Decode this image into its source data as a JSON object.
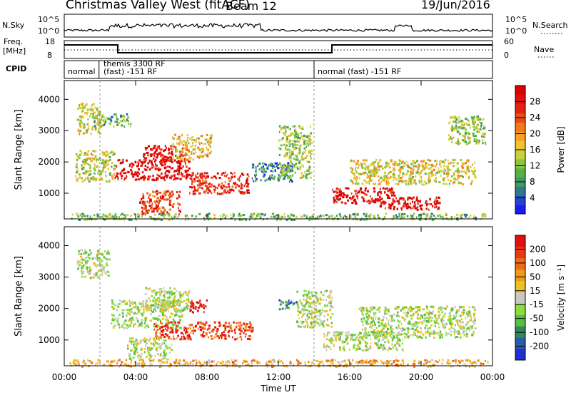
{
  "header": {
    "title": "Christmas Valley West (fitACF)",
    "beam": "Beam 12",
    "date": "19/Jun/2016"
  },
  "status_panel": {
    "nsky_label": "N.Sky",
    "nsky_ticks": [
      "10^5",
      "10^0"
    ],
    "nsearch_label": "N.Search",
    "freq_label_lines": [
      "Freq.",
      "[MHz]"
    ],
    "freq_ticks": [
      "18",
      "8"
    ],
    "nave_ticks": [
      "60",
      "0"
    ],
    "nave_label": "Nave",
    "cpid_label": "CPID",
    "cpid_segments": [
      {
        "start_hour": 0.0,
        "end_hour": 1.95,
        "label": "normal"
      },
      {
        "start_hour": 1.95,
        "end_hour": 14.0,
        "label": "themis 3300 RF",
        "label2": "(fast) -151 RF"
      },
      {
        "start_hour": 14.0,
        "end_hour": 24.0,
        "label": "normal (fast) -151 RF"
      }
    ]
  },
  "chart_data": [
    {
      "type": "heatmap",
      "name": "power",
      "ylabel": "Slant Range [km]",
      "xlim_hours": [
        0,
        24
      ],
      "ylim_km": [
        180,
        4600
      ],
      "yticks": [
        1000,
        2000,
        3000,
        4000
      ],
      "colorbar": {
        "label": "Power [dB]",
        "ticks": [
          4,
          8,
          12,
          16,
          20,
          24,
          28
        ],
        "range": [
          0,
          32
        ],
        "colors": [
          "#1a1aff",
          "#2445c9",
          "#2d7a8a",
          "#3f9b62",
          "#57b043",
          "#8cc63f",
          "#c9d23a",
          "#f0c22c",
          "#f7a023",
          "#f07a1c",
          "#e84d17",
          "#e42314",
          "#e00f10",
          "#dc0000"
        ]
      },
      "regions": [
        {
          "h0": 1.6,
          "h1": 3.7,
          "r0": 3150,
          "r1": 3560,
          "level": 0.3
        },
        {
          "h0": 0.7,
          "h1": 2.0,
          "r0": 2900,
          "r1": 3900,
          "level": 0.45
        },
        {
          "h0": 2.8,
          "h1": 7.0,
          "r0": 1450,
          "r1": 2100,
          "level": 0.95
        },
        {
          "h0": 4.4,
          "h1": 6.8,
          "r0": 2000,
          "r1": 2550,
          "level": 0.9
        },
        {
          "h0": 7.0,
          "h1": 10.3,
          "r0": 1000,
          "r1": 1700,
          "level": 0.85
        },
        {
          "h0": 4.2,
          "h1": 6.5,
          "r0": 350,
          "r1": 1100,
          "level": 0.8
        },
        {
          "h0": 6.0,
          "h1": 8.2,
          "r0": 2100,
          "r1": 2900,
          "level": 0.55
        },
        {
          "h0": 0.6,
          "h1": 2.8,
          "r0": 1400,
          "r1": 2400,
          "level": 0.45
        },
        {
          "h0": 10.5,
          "h1": 12.8,
          "r0": 1400,
          "r1": 2000,
          "level": 0.2
        },
        {
          "h0": 12.0,
          "h1": 13.8,
          "r0": 1500,
          "r1": 3200,
          "level": 0.4
        },
        {
          "h0": 15.0,
          "h1": 18.5,
          "r0": 700,
          "r1": 1200,
          "level": 0.9
        },
        {
          "h0": 16.0,
          "h1": 23.0,
          "r0": 1300,
          "r1": 2100,
          "level": 0.5
        },
        {
          "h0": 17.5,
          "h1": 21.0,
          "r0": 500,
          "r1": 900,
          "level": 0.95
        },
        {
          "h0": 0.3,
          "h1": 23.7,
          "r0": 180,
          "r1": 380,
          "level": 0.35
        },
        {
          "h0": 21.5,
          "h1": 23.6,
          "r0": 2600,
          "r1": 3500,
          "level": 0.4
        }
      ]
    },
    {
      "type": "heatmap",
      "name": "velocity",
      "ylabel": "Slant Range [km]",
      "xlabel": "Time UT",
      "xticks": [
        "00:00",
        "04:00",
        "08:00",
        "12:00",
        "16:00",
        "20:00",
        "00:00"
      ],
      "xlim_hours": [
        0,
        24
      ],
      "ylim_km": [
        180,
        4600
      ],
      "yticks": [
        1000,
        2000,
        3000,
        4000
      ],
      "colorbar": {
        "label": "Velocity [m s⁻¹]",
        "tick_labels": [
          "200",
          "100",
          "50",
          "15",
          "-15",
          "-50",
          "-100",
          "-200"
        ],
        "colors": [
          "#1f2fd0",
          "#2a5aa8",
          "#2f8a5a",
          "#58c040",
          "#8edc40",
          "#c8c8c0",
          "#f0c020",
          "#f09a1a",
          "#f06a15",
          "#e83a12",
          "#e01010"
        ]
      },
      "regions": [
        {
          "h0": 0.7,
          "h1": 2.5,
          "r0": 3000,
          "r1": 3900,
          "level": 0.45
        },
        {
          "h0": 2.6,
          "h1": 6.6,
          "r0": 1400,
          "r1": 2300,
          "level": 0.45
        },
        {
          "h0": 4.5,
          "h1": 7.0,
          "r0": 1950,
          "r1": 2700,
          "level": 0.45
        },
        {
          "h0": 5.0,
          "h1": 10.5,
          "r0": 1050,
          "r1": 1600,
          "level": 0.85
        },
        {
          "h0": 7.0,
          "h1": 8.0,
          "r0": 1900,
          "r1": 2300,
          "level": 1.0
        },
        {
          "h0": 3.5,
          "h1": 6.0,
          "r0": 400,
          "r1": 1100,
          "level": 0.45
        },
        {
          "h0": 13.0,
          "h1": 15.0,
          "r0": 1400,
          "r1": 2600,
          "level": 0.45
        },
        {
          "h0": 16.5,
          "h1": 23.0,
          "r0": 1100,
          "r1": 2100,
          "level": 0.45
        },
        {
          "h0": 14.5,
          "h1": 19.0,
          "r0": 700,
          "r1": 1300,
          "level": 0.45
        },
        {
          "h0": 0.3,
          "h1": 23.7,
          "r0": 180,
          "r1": 400,
          "level": 0.65
        },
        {
          "h0": 12.0,
          "h1": 13.0,
          "r0": 2000,
          "r1": 2300,
          "level": 0.2
        }
      ]
    }
  ]
}
